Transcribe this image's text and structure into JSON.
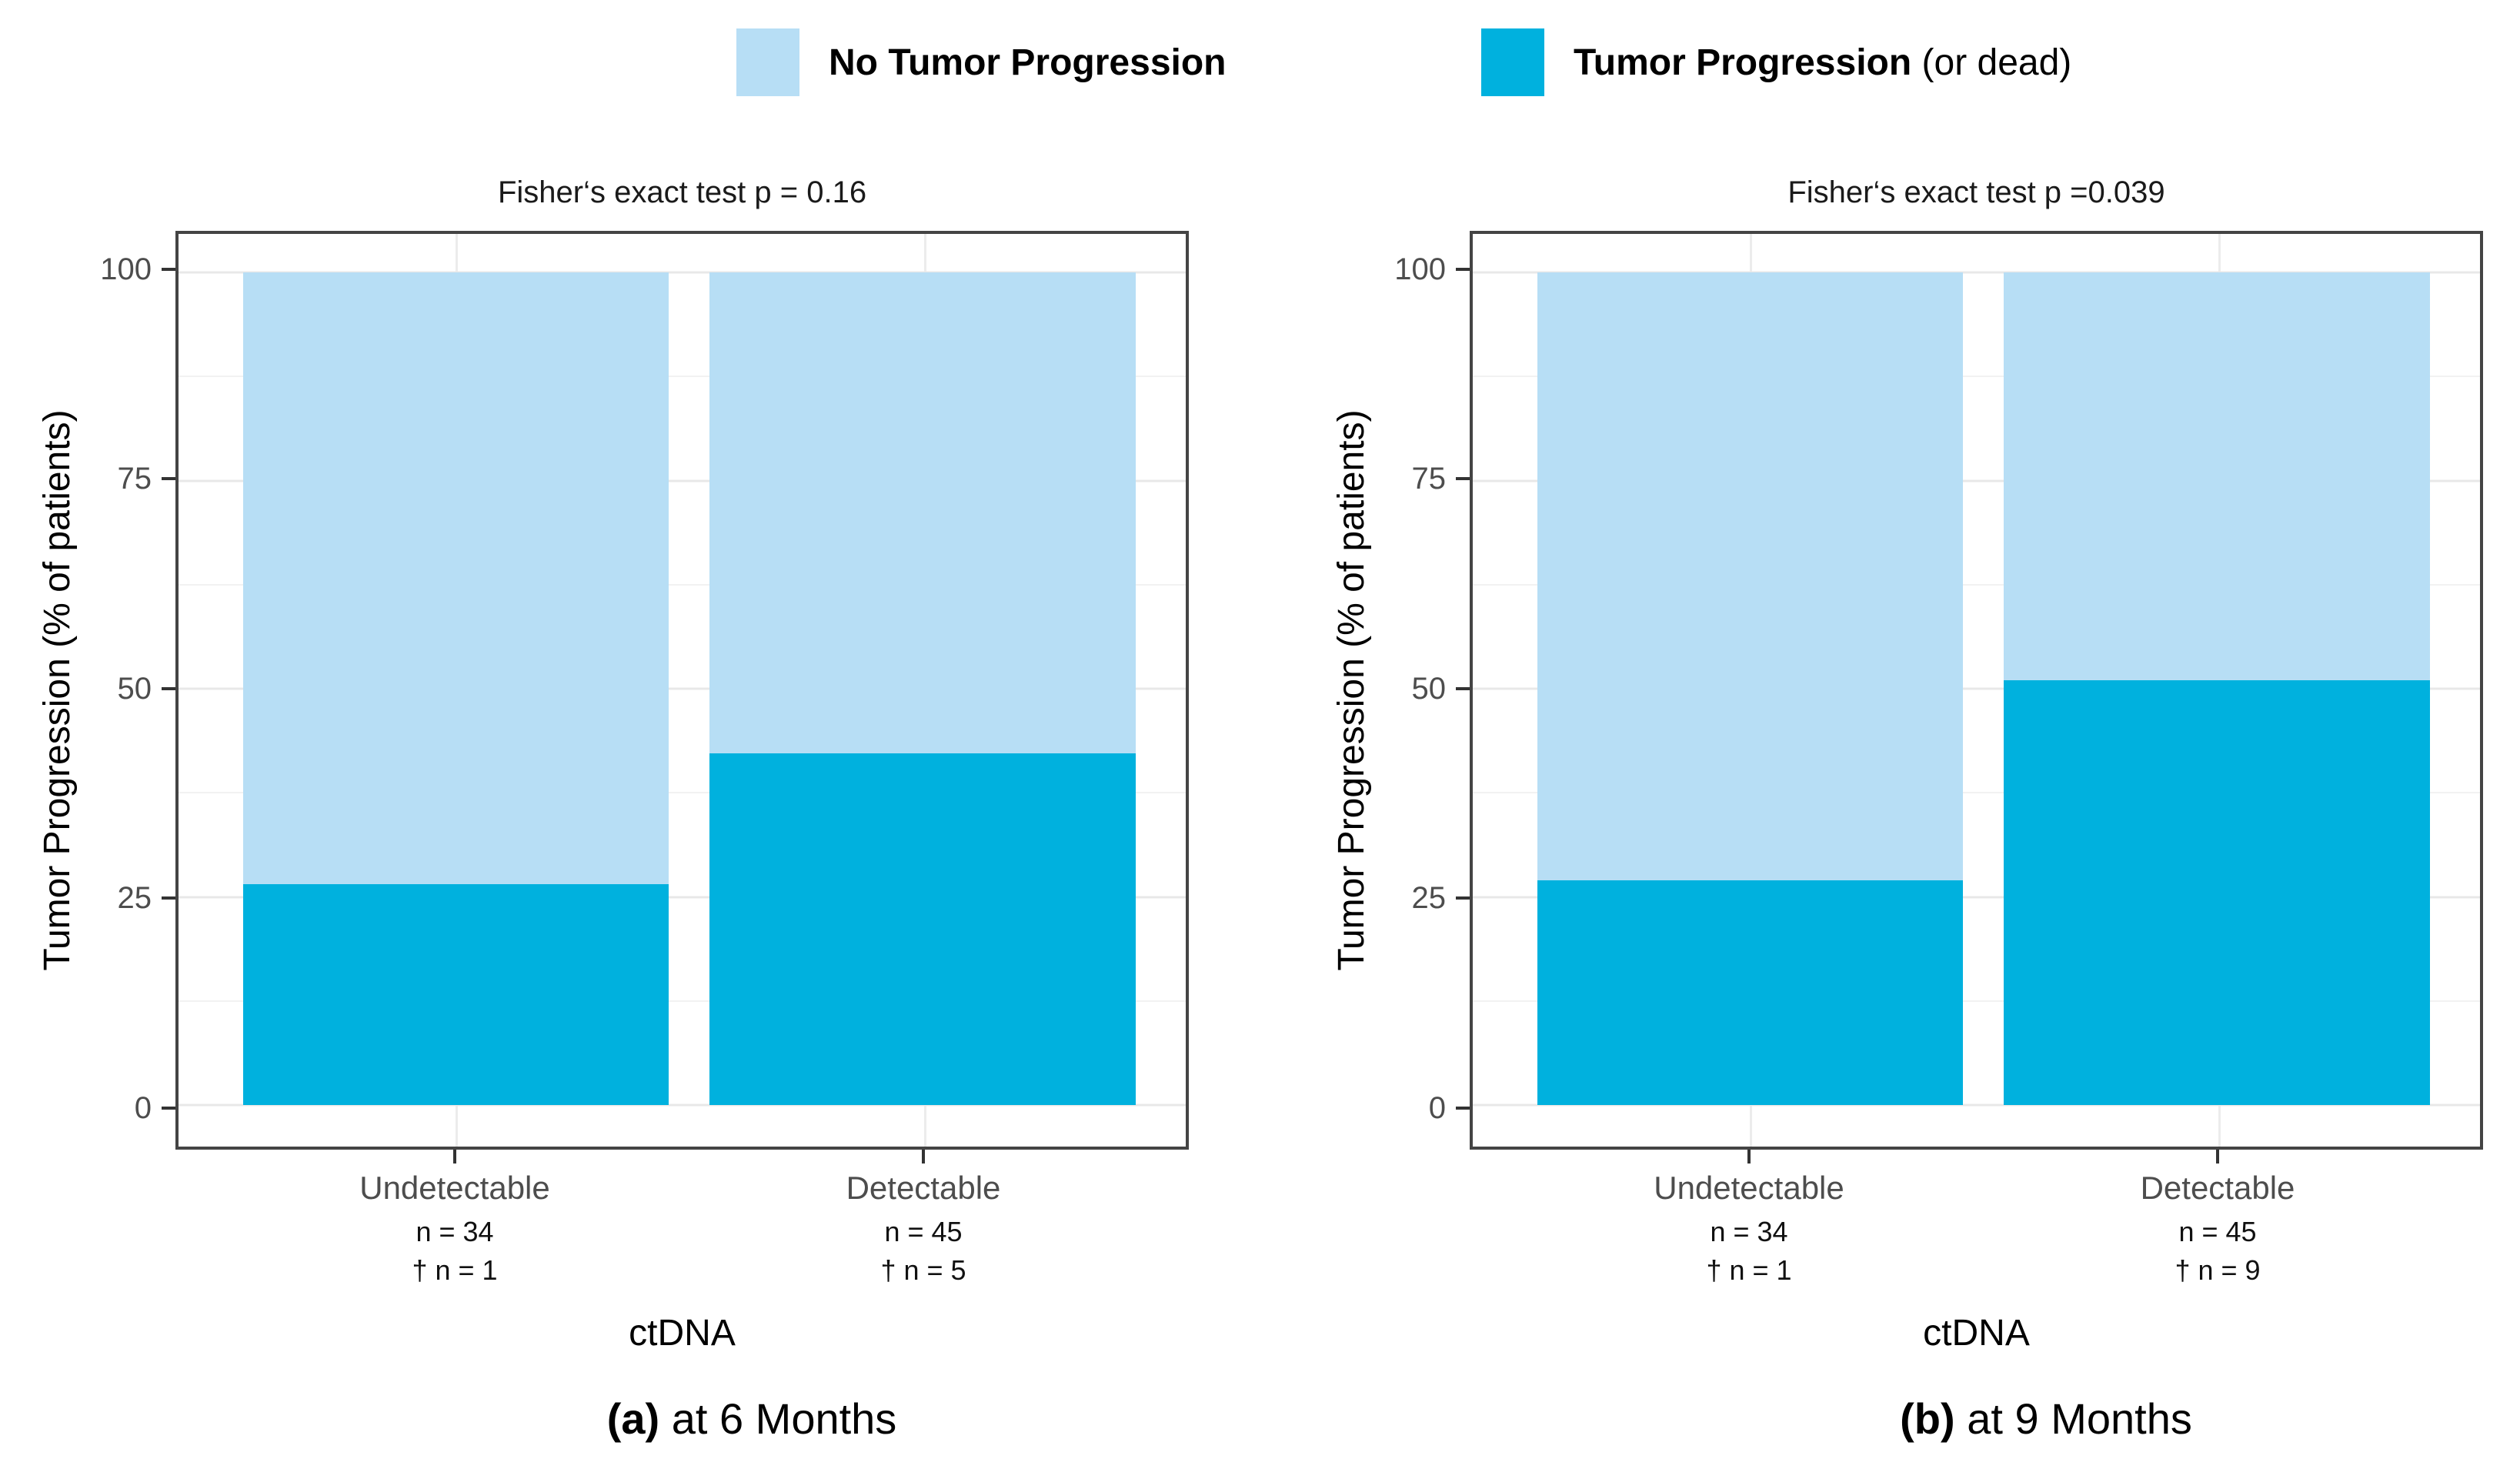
{
  "figure": {
    "legend": {
      "items": [
        {
          "label": "No Tumor Progression",
          "suffix": "",
          "color": "#b7def5"
        },
        {
          "label": "Tumor Progression",
          "suffix": " (or dead)",
          "color": "#00b1de"
        }
      ]
    }
  },
  "charts": [
    {
      "title": "Fisher‘s exact test p = 0.16",
      "y_axis_title": "Tumor Progression (% of patients)",
      "x_axis_title": "ctDNA",
      "yticks": [
        "100",
        "75",
        "50",
        "25",
        "0"
      ],
      "categories": [
        {
          "label": "Undetectable",
          "n_label": "n = 34",
          "dagger_label": "† n = 1"
        },
        {
          "label": "Detectable",
          "n_label": "n = 45",
          "dagger_label": "† n = 5"
        }
      ],
      "caption_prefix": "(a)",
      "caption_text": " at 6 Months"
    },
    {
      "title": "Fisher‘s exact test p =0.039",
      "y_axis_title": "Tumor Progression (% of patients)",
      "x_axis_title": "ctDNA",
      "yticks": [
        "100",
        "75",
        "50",
        "25",
        "0"
      ],
      "categories": [
        {
          "label": "Undetectable",
          "n_label": "n = 34",
          "dagger_label": "† n = 1"
        },
        {
          "label": "Detectable",
          "n_label": "n = 45",
          "dagger_label": "† n = 9"
        }
      ],
      "caption_prefix": "(b)",
      "caption_text": " at 9 Months"
    }
  ],
  "chart_data": [
    {
      "type": "bar",
      "stacked": true,
      "title": "Fisher's exact test p = 0.16",
      "categories": [
        "Undetectable",
        "Detectable"
      ],
      "series": [
        {
          "name": "Tumor Progression (or dead)",
          "color": "#00b1de",
          "values": [
            26.5,
            42.2
          ]
        },
        {
          "name": "No Tumor Progression",
          "color": "#b7def5",
          "values": [
            73.5,
            57.8
          ]
        }
      ],
      "n": [
        34,
        45
      ],
      "dagger_n": [
        1,
        5
      ],
      "xlabel": "ctDNA",
      "ylabel": "Tumor Progression (% of patients)",
      "ylim": [
        0,
        100
      ],
      "ytick_values": [
        0,
        25,
        50,
        75,
        100
      ],
      "grid": "major+minor horizontal, light gray on white",
      "legend_position": "top",
      "caption": "(a) at 6 Months"
    },
    {
      "type": "bar",
      "stacked": true,
      "title": "Fisher's exact test p =0.039",
      "categories": [
        "Undetectable",
        "Detectable"
      ],
      "series": [
        {
          "name": "Tumor Progression (or dead)",
          "color": "#00b1de",
          "values": [
            27,
            51
          ]
        },
        {
          "name": "No Tumor Progression",
          "color": "#b7def5",
          "values": [
            73,
            49
          ]
        }
      ],
      "n": [
        34,
        45
      ],
      "dagger_n": [
        1,
        9
      ],
      "xlabel": "ctDNA",
      "ylabel": "Tumor Progression (% of patients)",
      "ylim": [
        0,
        100
      ],
      "ytick_values": [
        0,
        25,
        50,
        75,
        100
      ],
      "grid": "major+minor horizontal, light gray on white",
      "legend_position": "top",
      "caption": "(b) at 9 Months"
    }
  ]
}
